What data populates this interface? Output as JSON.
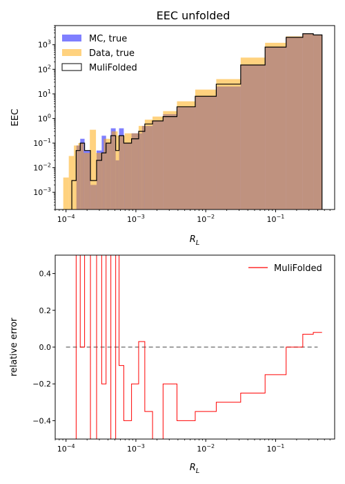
{
  "chart_data": [
    {
      "type": "histogram",
      "title": "EEC unfolded",
      "xlabel": "R_L",
      "ylabel": "EEC",
      "x_scale": "log",
      "y_scale": "log",
      "xlim": [
        7e-05,
        0.7
      ],
      "ylim": [
        0.0002,
        6000
      ],
      "x_tick_labels": [
        "10^-4",
        "10^-3",
        "10^-2",
        "10^-1"
      ],
      "y_tick_labels": [
        "10^-3",
        "10^-2",
        "10^-1",
        "10^0",
        "10^1",
        "10^2",
        "10^3"
      ],
      "legend_position": "upper-left",
      "series": [
        {
          "name": "MC, true",
          "style": "filled",
          "color": "#0000ff",
          "alpha": 0.5,
          "points": [
            [
              0.00015,
              0.08
            ],
            [
              0.00017,
              0.15
            ],
            [
              0.0002,
              0.05
            ],
            [
              0.00025,
              0.002
            ],
            [
              0.0003,
              0.05
            ],
            [
              0.00035,
              0.2
            ],
            [
              0.0004,
              0.1
            ],
            [
              0.00048,
              0.4
            ],
            [
              0.00055,
              0.02
            ],
            [
              0.0006,
              0.4
            ],
            [
              0.00075,
              0.1
            ],
            [
              0.001,
              0.25
            ],
            [
              0.0015,
              0.5
            ],
            [
              0.002,
              0.8
            ],
            [
              0.003,
              1.5
            ],
            [
              0.005,
              3
            ],
            [
              0.01,
              8
            ],
            [
              0.02,
              20
            ],
            [
              0.05,
              150
            ],
            [
              0.1,
              800
            ],
            [
              0.2,
              2000
            ],
            [
              0.3,
              2800
            ],
            [
              0.4,
              2500
            ]
          ]
        },
        {
          "name": "Data, true",
          "style": "filled",
          "color": "#ffa500",
          "alpha": 0.5,
          "points": [
            [
              0.0001,
              0.004
            ],
            [
              0.00012,
              0.03
            ],
            [
              0.00014,
              0.08
            ],
            [
              0.00016,
              0.1
            ],
            [
              0.0002,
              0.04
            ],
            [
              0.00024,
              0.35
            ],
            [
              0.0003,
              0.04
            ],
            [
              0.0004,
              0.15
            ],
            [
              0.0005,
              0.3
            ],
            [
              0.0006,
              0.2
            ],
            [
              0.0008,
              0.25
            ],
            [
              0.001,
              0.25
            ],
            [
              0.0012,
              0.5
            ],
            [
              0.0015,
              0.9
            ],
            [
              0.002,
              1.2
            ],
            [
              0.003,
              2
            ],
            [
              0.005,
              5
            ],
            [
              0.01,
              15
            ],
            [
              0.02,
              40
            ],
            [
              0.05,
              300
            ],
            [
              0.1,
              1200
            ],
            [
              0.2,
              2200
            ],
            [
              0.3,
              2800
            ],
            [
              0.4,
              2500
            ]
          ]
        },
        {
          "name": "MuliFolded",
          "style": "step",
          "color": "#000000",
          "points": [
            [
              0.00013,
              0.003
            ],
            [
              0.00015,
              0.05
            ],
            [
              0.00017,
              0.1
            ],
            [
              0.0002,
              0.05
            ],
            [
              0.00025,
              0.003
            ],
            [
              0.0003,
              0.02
            ],
            [
              0.00035,
              0.04
            ],
            [
              0.0004,
              0.1
            ],
            [
              0.00048,
              0.2
            ],
            [
              0.00055,
              0.05
            ],
            [
              0.0006,
              0.2
            ],
            [
              0.00075,
              0.1
            ],
            [
              0.001,
              0.15
            ],
            [
              0.0012,
              0.3
            ],
            [
              0.0015,
              0.6
            ],
            [
              0.002,
              0.8
            ],
            [
              0.003,
              1.2
            ],
            [
              0.005,
              3
            ],
            [
              0.01,
              8
            ],
            [
              0.02,
              25
            ],
            [
              0.05,
              150
            ],
            [
              0.1,
              800
            ],
            [
              0.2,
              2000
            ],
            [
              0.3,
              2800
            ],
            [
              0.4,
              2500
            ]
          ]
        }
      ]
    },
    {
      "type": "line",
      "title": "",
      "xlabel": "R_L",
      "ylabel": "relative error",
      "x_scale": "log",
      "xlim": [
        7e-05,
        0.7
      ],
      "ylim": [
        -0.5,
        0.5
      ],
      "x_tick_labels": [
        "10^-4",
        "10^-3",
        "10^-2",
        "10^-1"
      ],
      "y_ticks": [
        -0.4,
        -0.2,
        0.0,
        0.2,
        0.4
      ],
      "y_tick_labels": [
        "−0.4",
        "−0.2",
        "0.0",
        "0.2",
        "0.4"
      ],
      "legend_position": "upper-right",
      "reference_line": {
        "y": 0.0,
        "style": "dashed",
        "color": "#808080"
      },
      "series": [
        {
          "name": "MuliFolded",
          "style": "step",
          "color": "#ff0000",
          "points": [
            [
              0.00013,
              -0.5
            ],
            [
              0.00015,
              0.5
            ],
            [
              0.00017,
              0.0
            ],
            [
              0.0002,
              0.5
            ],
            [
              0.00025,
              -0.5
            ],
            [
              0.0003,
              0.5
            ],
            [
              0.00035,
              -0.2
            ],
            [
              0.0004,
              0.5
            ],
            [
              0.00048,
              -0.5
            ],
            [
              0.00055,
              0.5
            ],
            [
              0.0006,
              -0.1
            ],
            [
              0.00075,
              -0.4
            ],
            [
              0.001,
              -0.2
            ],
            [
              0.0012,
              0.03
            ],
            [
              0.0015,
              -0.35
            ],
            [
              0.002,
              -0.5
            ],
            [
              0.003,
              -0.2
            ],
            [
              0.005,
              -0.4
            ],
            [
              0.01,
              -0.35
            ],
            [
              0.02,
              -0.3
            ],
            [
              0.05,
              -0.25
            ],
            [
              0.1,
              -0.15
            ],
            [
              0.2,
              0.0
            ],
            [
              0.3,
              0.07
            ],
            [
              0.4,
              0.08
            ]
          ]
        }
      ]
    }
  ]
}
